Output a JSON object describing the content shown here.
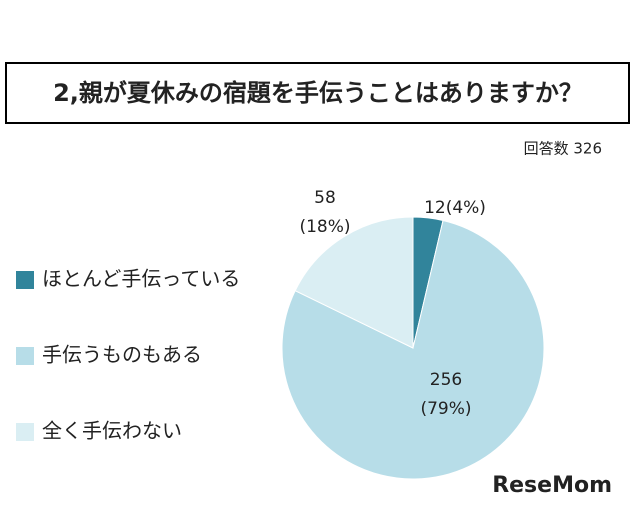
{
  "chart_data": {
    "type": "pie",
    "title": "2,親が夏休みの宿題を手伝うことはありますか？",
    "subtitle": "回答数 326",
    "categories": [
      "ほとんど手伝っている",
      "手伝うものもある",
      "全く手伝わない"
    ],
    "values": [
      12,
      256,
      58
    ],
    "value_labels": [
      [
        "12(4%)"
      ],
      [
        "256",
        "(79%)"
      ],
      [
        "58",
        "(18%)"
      ]
    ],
    "colors": [
      "#31849b",
      "#b7dde8",
      "#daeef3"
    ],
    "legend": "left",
    "watermark": "ReseMom"
  }
}
